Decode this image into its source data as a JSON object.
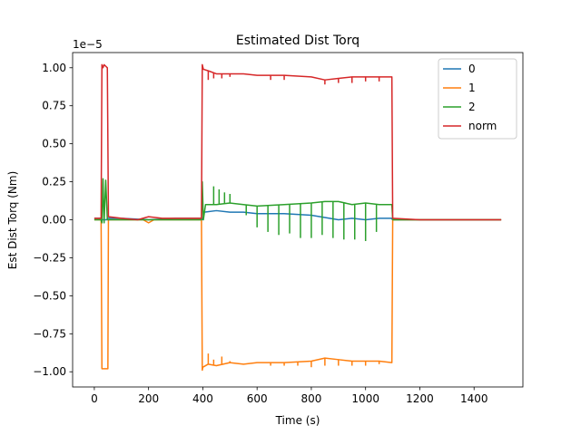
{
  "chart_data": {
    "type": "line",
    "title": "Estimated Dist Torq",
    "xlabel": "Time (s)",
    "ylabel": "Est Dist Torq (Nm)",
    "offset_label": "1e−5",
    "xlim": [
      -80,
      1580
    ],
    "ylim": [
      -1.1,
      1.1
    ],
    "xticks": [
      0,
      200,
      400,
      600,
      800,
      1000,
      1200,
      1400
    ],
    "xtick_labels": [
      "0",
      "200",
      "400",
      "600",
      "800",
      "1000",
      "1200",
      "1400"
    ],
    "yticks": [
      1.0,
      0.75,
      0.5,
      0.25,
      0.0,
      -0.25,
      -0.5,
      -0.75,
      -1.0
    ],
    "ytick_labels": [
      "1.00",
      "0.75",
      "0.50",
      "0.25",
      "0.00",
      "−0.25",
      "−0.50",
      "−0.75",
      "−1.00"
    ],
    "grid": false,
    "legend_position": "top-right",
    "series": [
      {
        "name": "0",
        "color": "#1f77b4",
        "points": [
          [
            0,
            0.01
          ],
          [
            25,
            0.01
          ],
          [
            30,
            0.0
          ],
          [
            45,
            0.0
          ],
          [
            50,
            0.01
          ],
          [
            100,
            0.01
          ],
          [
            200,
            0.0
          ],
          [
            300,
            0.01
          ],
          [
            395,
            0.01
          ],
          [
            400,
            0.0
          ],
          [
            405,
            0.05
          ],
          [
            450,
            0.06
          ],
          [
            500,
            0.05
          ],
          [
            550,
            0.05
          ],
          [
            600,
            0.04
          ],
          [
            700,
            0.04
          ],
          [
            800,
            0.03
          ],
          [
            900,
            0.0
          ],
          [
            950,
            0.01
          ],
          [
            1000,
            0.0
          ],
          [
            1050,
            0.01
          ],
          [
            1095,
            0.01
          ],
          [
            1100,
            0.0
          ],
          [
            1200,
            0.0
          ],
          [
            1300,
            0.0
          ],
          [
            1400,
            0.0
          ],
          [
            1500,
            0.0
          ]
        ]
      },
      {
        "name": "1",
        "color": "#ff7f0e",
        "points": [
          [
            0,
            0.0
          ],
          [
            25,
            0.0
          ],
          [
            28,
            -0.98
          ],
          [
            50,
            -0.98
          ],
          [
            52,
            0.0
          ],
          [
            100,
            0.0
          ],
          [
            180,
            0.0
          ],
          [
            200,
            -0.02
          ],
          [
            220,
            0.0
          ],
          [
            300,
            0.0
          ],
          [
            395,
            0.0
          ],
          [
            398,
            -0.99
          ],
          [
            400,
            -0.97
          ],
          [
            420,
            -0.95
          ],
          [
            450,
            -0.96
          ],
          [
            500,
            -0.94
          ],
          [
            550,
            -0.95
          ],
          [
            600,
            -0.94
          ],
          [
            700,
            -0.94
          ],
          [
            800,
            -0.93
          ],
          [
            850,
            -0.91
          ],
          [
            900,
            -0.92
          ],
          [
            950,
            -0.93
          ],
          [
            1000,
            -0.93
          ],
          [
            1050,
            -0.93
          ],
          [
            1097,
            -0.94
          ],
          [
            1100,
            0.0
          ],
          [
            1200,
            0.0
          ],
          [
            1300,
            0.0
          ],
          [
            1400,
            0.0
          ],
          [
            1500,
            0.0
          ]
        ]
      },
      {
        "name": "2",
        "color": "#2ca02c",
        "points": [
          [
            0,
            0.0
          ],
          [
            25,
            0.0
          ],
          [
            28,
            -0.02
          ],
          [
            32,
            0.27
          ],
          [
            36,
            -0.02
          ],
          [
            42,
            0.26
          ],
          [
            48,
            0.0
          ],
          [
            100,
            0.0
          ],
          [
            200,
            0.0
          ],
          [
            300,
            0.0
          ],
          [
            395,
            0.0
          ],
          [
            398,
            0.25
          ],
          [
            402,
            0.0
          ],
          [
            410,
            0.1
          ],
          [
            450,
            0.1
          ],
          [
            500,
            0.11
          ],
          [
            550,
            0.1
          ],
          [
            600,
            0.09
          ],
          [
            700,
            0.1
          ],
          [
            800,
            0.11
          ],
          [
            850,
            0.12
          ],
          [
            900,
            0.12
          ],
          [
            950,
            0.1
          ],
          [
            1000,
            0.11
          ],
          [
            1050,
            0.1
          ],
          [
            1097,
            0.1
          ],
          [
            1100,
            0.0
          ],
          [
            1200,
            0.0
          ],
          [
            1300,
            0.0
          ],
          [
            1400,
            0.0
          ],
          [
            1500,
            0.0
          ]
        ]
      },
      {
        "name": "norm",
        "color": "#d62728",
        "points": [
          [
            0,
            0.01
          ],
          [
            25,
            0.01
          ],
          [
            28,
            1.02
          ],
          [
            32,
            1.0
          ],
          [
            36,
            1.02
          ],
          [
            42,
            1.01
          ],
          [
            48,
            1.0
          ],
          [
            52,
            0.02
          ],
          [
            100,
            0.01
          ],
          [
            160,
            0.0
          ],
          [
            200,
            0.02
          ],
          [
            250,
            0.01
          ],
          [
            300,
            0.01
          ],
          [
            395,
            0.01
          ],
          [
            398,
            1.02
          ],
          [
            402,
            0.99
          ],
          [
            420,
            0.98
          ],
          [
            450,
            0.96
          ],
          [
            500,
            0.96
          ],
          [
            550,
            0.96
          ],
          [
            600,
            0.95
          ],
          [
            700,
            0.95
          ],
          [
            800,
            0.94
          ],
          [
            850,
            0.92
          ],
          [
            900,
            0.93
          ],
          [
            950,
            0.94
          ],
          [
            1000,
            0.94
          ],
          [
            1050,
            0.94
          ],
          [
            1097,
            0.94
          ],
          [
            1100,
            0.01
          ],
          [
            1200,
            0.0
          ],
          [
            1300,
            0.0
          ],
          [
            1400,
            0.0
          ],
          [
            1500,
            0.0
          ]
        ]
      }
    ],
    "spikes": [
      {
        "series": "2",
        "x": [
          440,
          460,
          480,
          500,
          560,
          600,
          640,
          680,
          720,
          760,
          800,
          840,
          880,
          920,
          960,
          1000,
          1040
        ],
        "to": [
          0.22,
          0.2,
          0.18,
          0.17,
          0.03,
          -0.05,
          -0.08,
          -0.1,
          -0.09,
          -0.12,
          -0.12,
          -0.1,
          -0.12,
          -0.13,
          -0.13,
          -0.14,
          -0.08
        ]
      },
      {
        "series": "1",
        "x": [
          420,
          440,
          470,
          500,
          650,
          700,
          750,
          800,
          850,
          900,
          950,
          1000,
          1050
        ],
        "to": [
          -0.88,
          -0.92,
          -0.9,
          -0.93,
          -0.96,
          -0.96,
          -0.96,
          -0.97,
          -0.96,
          -0.96,
          -0.96,
          -0.96,
          -0.95
        ]
      },
      {
        "series": "norm",
        "x": [
          420,
          440,
          470,
          500,
          650,
          700,
          850,
          900,
          950,
          1000,
          1050
        ],
        "to": [
          0.92,
          0.93,
          0.93,
          0.94,
          0.92,
          0.92,
          0.89,
          0.9,
          0.9,
          0.91,
          0.91
        ]
      }
    ]
  }
}
